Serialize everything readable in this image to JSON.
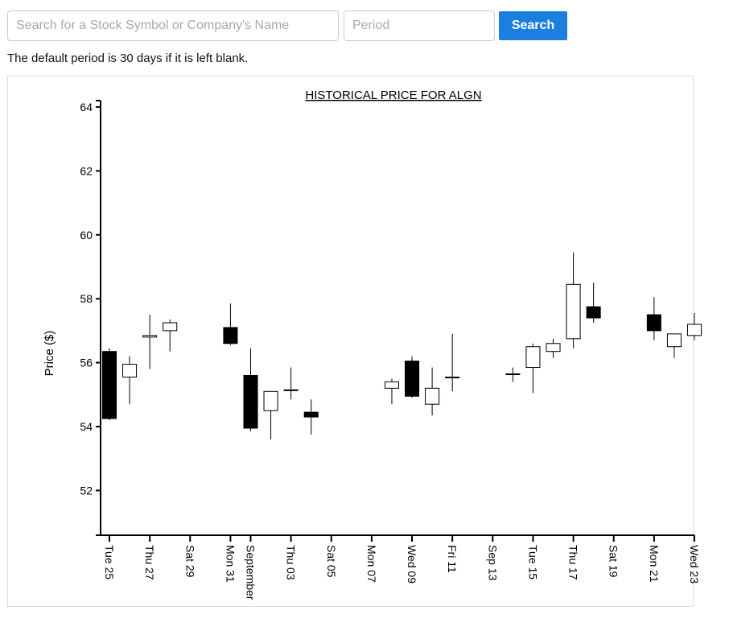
{
  "search": {
    "symbol_placeholder": "Search for a Stock Symbol or Company's Name",
    "symbol_value": "",
    "period_placeholder": "Period",
    "period_value": "",
    "button_label": "Search"
  },
  "note": "The default period is 30 days if it is left blank.",
  "colors": {
    "accent": "#1a7fde",
    "rising_fill": "#ffffff",
    "falling_fill": "#000000"
  },
  "chart_data": {
    "type": "candlestick",
    "title": "HISTORICAL PRICE FOR ALGN",
    "ylabel": "Price ($)",
    "xlabel": "",
    "ylim": [
      50.6,
      64.2
    ],
    "yticks": [
      52,
      54,
      56,
      58,
      60,
      62,
      64
    ],
    "xlim": [
      "2015-08-25",
      "2015-09-23"
    ],
    "xticks": [
      {
        "date": "2015-08-25",
        "label": "Tue 25"
      },
      {
        "date": "2015-08-27",
        "label": "Thu 27"
      },
      {
        "date": "2015-08-29",
        "label": "Sat 29"
      },
      {
        "date": "2015-08-31",
        "label": "Mon 31"
      },
      {
        "date": "2015-09-01",
        "label": "September"
      },
      {
        "date": "2015-09-03",
        "label": "Thu 03"
      },
      {
        "date": "2015-09-05",
        "label": "Sat 05"
      },
      {
        "date": "2015-09-07",
        "label": "Mon 07"
      },
      {
        "date": "2015-09-09",
        "label": "Wed 09"
      },
      {
        "date": "2015-09-11",
        "label": "Fri 11"
      },
      {
        "date": "2015-09-13",
        "label": "Sep 13"
      },
      {
        "date": "2015-09-15",
        "label": "Tue 15"
      },
      {
        "date": "2015-09-17",
        "label": "Thu 17"
      },
      {
        "date": "2015-09-19",
        "label": "Sat 19"
      },
      {
        "date": "2015-09-21",
        "label": "Mon 21"
      },
      {
        "date": "2015-09-23",
        "label": "Wed 23"
      }
    ],
    "candles": [
      {
        "date": "2015-08-25",
        "open": 56.35,
        "high": 56.45,
        "low": 54.2,
        "close": 54.25
      },
      {
        "date": "2015-08-26",
        "open": 55.55,
        "high": 56.2,
        "low": 54.7,
        "close": 55.95
      },
      {
        "date": "2015-08-27",
        "open": 56.8,
        "high": 57.5,
        "low": 55.8,
        "close": 56.85
      },
      {
        "date": "2015-08-28",
        "open": 57.0,
        "high": 57.35,
        "low": 56.35,
        "close": 57.25
      },
      {
        "date": "2015-08-31",
        "open": 57.1,
        "high": 57.85,
        "low": 56.55,
        "close": 56.6
      },
      {
        "date": "2015-09-01",
        "open": 55.6,
        "high": 56.45,
        "low": 53.85,
        "close": 53.95
      },
      {
        "date": "2015-09-02",
        "open": 54.5,
        "high": 55.1,
        "low": 53.6,
        "close": 55.1
      },
      {
        "date": "2015-09-03",
        "open": 55.15,
        "high": 55.85,
        "low": 54.85,
        "close": 55.15
      },
      {
        "date": "2015-09-04",
        "open": 54.45,
        "high": 54.85,
        "low": 53.75,
        "close": 54.3
      },
      {
        "date": "2015-09-08",
        "open": 55.2,
        "high": 55.5,
        "low": 54.7,
        "close": 55.4
      },
      {
        "date": "2015-09-09",
        "open": 56.05,
        "high": 56.2,
        "low": 54.9,
        "close": 54.95
      },
      {
        "date": "2015-09-10",
        "open": 54.7,
        "high": 55.85,
        "low": 54.35,
        "close": 55.2
      },
      {
        "date": "2015-09-11",
        "open": 55.55,
        "high": 56.9,
        "low": 55.1,
        "close": 55.55
      },
      {
        "date": "2015-09-14",
        "open": 55.65,
        "high": 55.85,
        "low": 55.4,
        "close": 55.65
      },
      {
        "date": "2015-09-15",
        "open": 55.85,
        "high": 56.6,
        "low": 55.05,
        "close": 56.5
      },
      {
        "date": "2015-09-16",
        "open": 56.35,
        "high": 56.75,
        "low": 56.15,
        "close": 56.6
      },
      {
        "date": "2015-09-17",
        "open": 56.75,
        "high": 59.45,
        "low": 56.45,
        "close": 58.45
      },
      {
        "date": "2015-09-18",
        "open": 57.75,
        "high": 58.5,
        "low": 57.25,
        "close": 57.4
      },
      {
        "date": "2015-09-21",
        "open": 57.5,
        "high": 58.05,
        "low": 56.7,
        "close": 57.0
      },
      {
        "date": "2015-09-22",
        "open": 56.5,
        "high": 56.9,
        "low": 56.15,
        "close": 56.9
      },
      {
        "date": "2015-09-23",
        "open": 56.85,
        "high": 57.55,
        "low": 56.7,
        "close": 57.2
      }
    ],
    "grid": false,
    "legend": "none"
  }
}
